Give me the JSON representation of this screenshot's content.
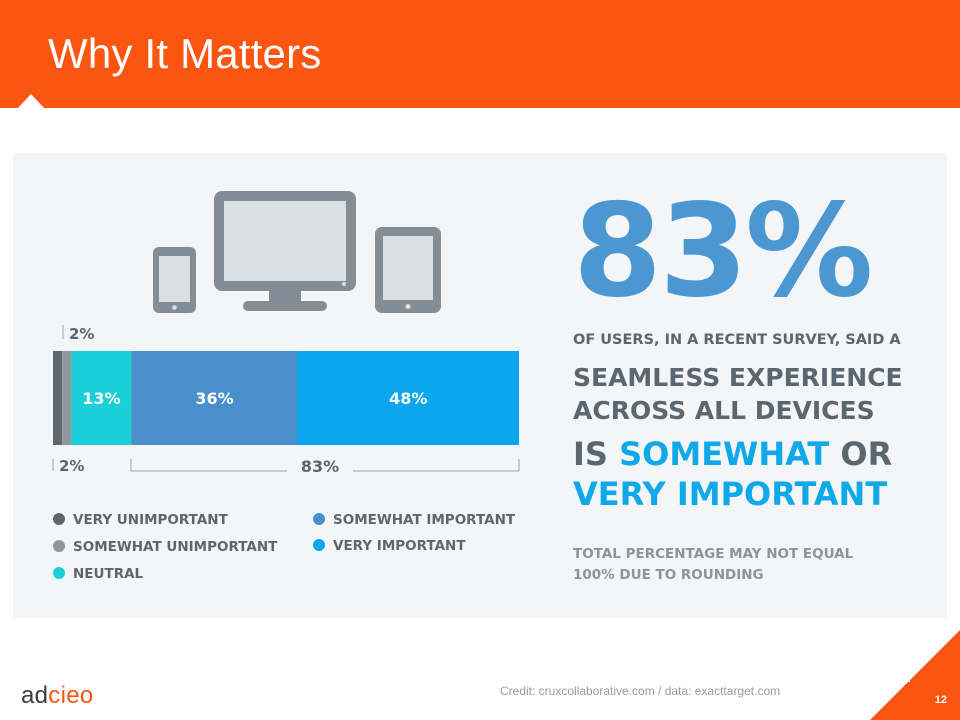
{
  "slide": {
    "title": "Why It Matters",
    "credit": "Credit: cruxcollaborative.com / data: exacttarget.com",
    "page_number": "12",
    "logo": {
      "part1": "ad",
      "part2": "cieo"
    }
  },
  "infographic": {
    "big_number": "83%",
    "headline_line1": "OF USERS, IN A RECENT SURVEY, SAID A",
    "headline_line2": "SEAMLESS EXPERIENCE",
    "headline_line3": "ACROSS ALL DEVICES",
    "headline_line4a": "IS ",
    "headline_line4b": "SOMEWHAT",
    "headline_line4c": " OR",
    "headline_line5": "VERY IMPORTANT",
    "footnote_line1": "TOTAL PERCENTAGE MAY NOT EQUAL",
    "footnote_line2": "100% DUE TO ROUNDING",
    "combined_label": "83%",
    "devices_icon": "devices-icon",
    "colors": {
      "header": "#FB5512",
      "big_number": "#4A97D1",
      "text_dark": "#5A6670",
      "text_accent": "#0FA8E9"
    }
  },
  "chart_data": {
    "type": "bar",
    "orientation": "horizontal-stacked-100",
    "categories": [
      "VERY UNIMPORTANT",
      "SOMEWHAT UNIMPORTANT",
      "NEUTRAL",
      "SOMEWHAT IMPORTANT",
      "VERY IMPORTANT"
    ],
    "values": [
      2,
      2,
      13,
      36,
      48
    ],
    "value_labels": [
      "2%",
      "2%",
      "13%",
      "36%",
      "48%"
    ],
    "colors": [
      "#5C6770",
      "#8F989F",
      "#1BCFD9",
      "#4A8FCC",
      "#0BA6EE"
    ],
    "legend_placement": "bottom",
    "title": "",
    "xlabel": "",
    "ylabel": ""
  }
}
